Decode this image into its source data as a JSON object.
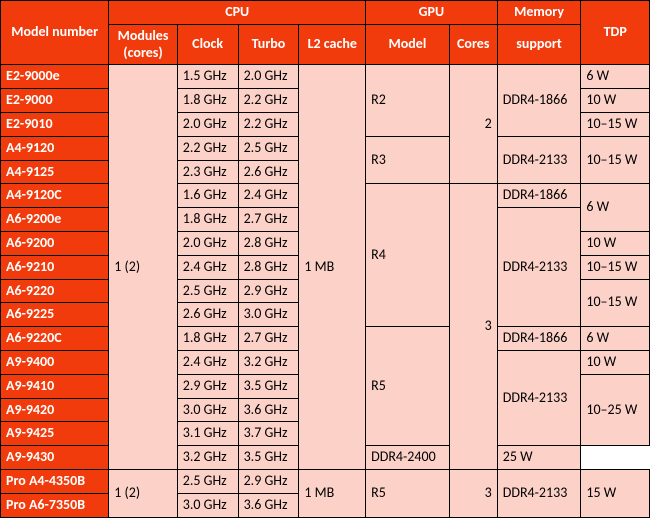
{
  "colors": {
    "header_bg": "#f13b0c",
    "header_fg": "#ffffff",
    "cell_bg": "#fbd1c8",
    "cell_fg": "#000000",
    "border": "#000000"
  },
  "headers": {
    "model_number": "Model number",
    "cpu": "CPU",
    "gpu": "GPU",
    "memory": "Memory",
    "tdp": "TDP",
    "modules_line1": "Modules",
    "modules_line2": "(cores)",
    "clock": "Clock",
    "turbo": "Turbo",
    "l2": "L2 cache",
    "gpu_model": "Model",
    "gpu_cores": "Cores",
    "mem_support": "support"
  },
  "common": {
    "modules_1_2": "1 (2)",
    "l2_1mb": "1 MB"
  },
  "gpu": {
    "r2": "R2",
    "r3": "R3",
    "r4": "R4",
    "r5": "R5",
    "cores2": "2",
    "cores3": "3"
  },
  "mem": {
    "ddr4_1866": "DDR4-1866",
    "ddr4_2133": "DDR4-2133",
    "ddr4_2400": "DDR4-2400"
  },
  "tdp": {
    "w6": "6 W",
    "w10": "10 W",
    "w10_15": "10–15 W",
    "w10_25": "10–25 W",
    "w15": "15 W",
    "w25": "25 W"
  },
  "rows": {
    "e2_9000e": {
      "model": "E2-9000e",
      "clock": "1.5 GHz",
      "turbo": "2.0 GHz"
    },
    "e2_9000": {
      "model": "E2-9000",
      "clock": "1.8 GHz",
      "turbo": "2.2 GHz"
    },
    "e2_9010": {
      "model": "E2-9010",
      "clock": "2.0 GHz",
      "turbo": "2.2 GHz"
    },
    "a4_9120": {
      "model": "A4-9120",
      "clock": "2.2 GHz",
      "turbo": "2.5 GHz"
    },
    "a4_9125": {
      "model": "A4-9125",
      "clock": "2.3 GHz",
      "turbo": "2.6 GHz"
    },
    "a4_9120c": {
      "model": "A4-9120C",
      "clock": "1.6 GHz",
      "turbo": "2.4 GHz"
    },
    "a6_9200e": {
      "model": "A6-9200e",
      "clock": "1.8 GHz",
      "turbo": "2.7 GHz"
    },
    "a6_9200": {
      "model": "A6-9200",
      "clock": "2.0 GHz",
      "turbo": "2.8 GHz"
    },
    "a6_9210": {
      "model": "A6-9210",
      "clock": "2.4 GHz",
      "turbo": "2.8 GHz"
    },
    "a6_9220": {
      "model": "A6-9220",
      "clock": "2.5 GHz",
      "turbo": "2.9 GHz"
    },
    "a6_9225": {
      "model": "A6-9225",
      "clock": "2.6 GHz",
      "turbo": "3.0 GHz"
    },
    "a6_9220c": {
      "model": "A6-9220C",
      "clock": "1.8 GHz",
      "turbo": "2.7 GHz"
    },
    "a9_9400": {
      "model": "A9-9400",
      "clock": "2.4 GHz",
      "turbo": "3.2 GHz"
    },
    "a9_9410": {
      "model": "A9-9410",
      "clock": "2.9 GHz",
      "turbo": "3.5 GHz"
    },
    "a9_9420": {
      "model": "A9-9420",
      "clock": "3.0 GHz",
      "turbo": "3.6 GHz"
    },
    "a9_9425": {
      "model": "A9-9425",
      "clock": "3.1 GHz",
      "turbo": "3.7 GHz"
    },
    "a9_9430": {
      "model": "A9-9430",
      "clock": "3.2 GHz",
      "turbo": "3.5 GHz"
    },
    "pro_a4_4350b": {
      "model": "Pro A4-4350B",
      "clock": "2.5 GHz",
      "turbo": "2.9 GHz"
    },
    "pro_a6_7350b": {
      "model": "Pro A6-7350B",
      "clock": "3.0 GHz",
      "turbo": "3.6 GHz"
    }
  }
}
